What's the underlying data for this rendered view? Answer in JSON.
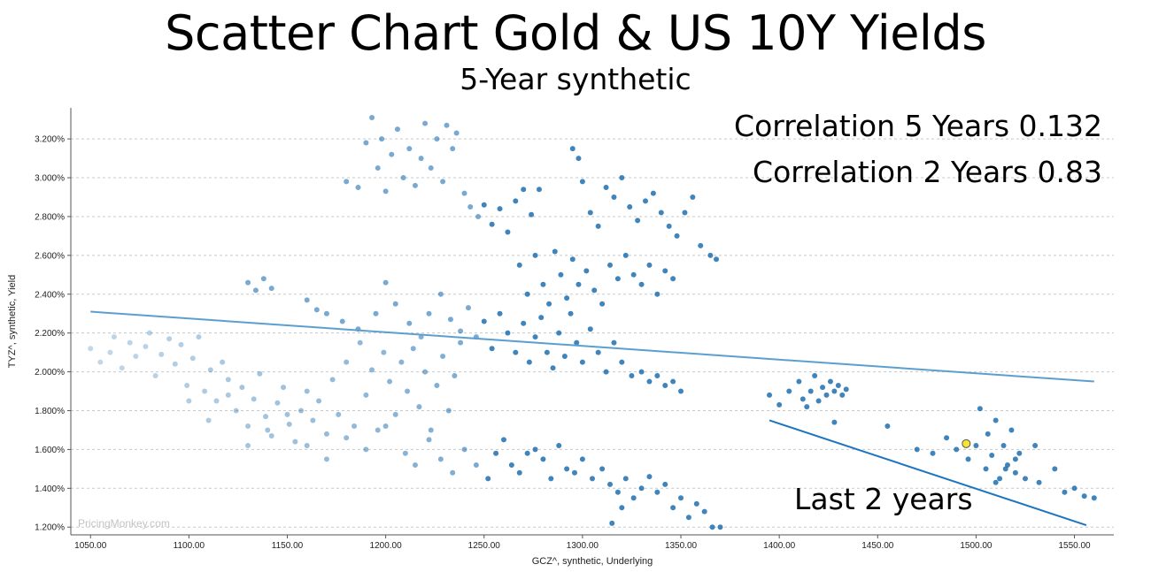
{
  "title": "Scatter Chart Gold & US 10Y Yields",
  "subtitle": "5-Year synthetic",
  "annotations": {
    "correlation_5y": "Correlation 5 Years 0.132",
    "correlation_2y": "Correlation 2 Years 0.83",
    "last_2_years": "Last 2 years",
    "watermark": "PricingMonkey.com"
  },
  "colors": {
    "point": "#1f6fb0",
    "trend_5y": "#5b9fd0",
    "trend_2y": "#1f74c0",
    "latest_point": "#f4e531",
    "grid": "#c8c8c8"
  },
  "chart_data": {
    "type": "scatter",
    "title": "Scatter Chart Gold & US 10Y Yields",
    "subtitle": "5-Year synthetic",
    "xlabel": "GCZ^, synthetic, Underlying",
    "ylabel": "TYZ^, synthetic, Yield",
    "xlim": [
      1040,
      1570
    ],
    "ylim": [
      1.16,
      3.36
    ],
    "x_ticks": [
      1050,
      1100,
      1150,
      1200,
      1250,
      1300,
      1350,
      1400,
      1450,
      1500,
      1550
    ],
    "x_tick_labels": [
      "1050.00",
      "1100.00",
      "1150.00",
      "1200.00",
      "1250.00",
      "1300.00",
      "1350.00",
      "1400.00",
      "1450.00",
      "1500.00",
      "1550.00"
    ],
    "y_ticks": [
      1.2,
      1.4,
      1.6,
      1.8,
      2.0,
      2.2,
      2.4,
      2.6,
      2.8,
      3.0,
      3.2
    ],
    "y_tick_labels": [
      "1.200%",
      "1.400%",
      "1.600%",
      "1.800%",
      "2.000%",
      "2.200%",
      "2.400%",
      "2.600%",
      "2.800%",
      "3.000%",
      "3.200%"
    ],
    "grid": "horizontal dashed",
    "series": [
      {
        "points": [
          [
            1050,
            2.12
          ],
          [
            1055,
            2.05
          ],
          [
            1060,
            2.1
          ],
          [
            1062,
            2.18
          ],
          [
            1066,
            2.02
          ],
          [
            1070,
            2.15
          ],
          [
            1073,
            2.08
          ],
          [
            1078,
            2.13
          ],
          [
            1080,
            2.2
          ],
          [
            1083,
            1.98
          ],
          [
            1086,
            2.09
          ],
          [
            1090,
            2.17
          ],
          [
            1093,
            2.04
          ],
          [
            1096,
            2.14
          ],
          [
            1099,
            1.93
          ],
          [
            1102,
            2.07
          ],
          [
            1105,
            2.18
          ],
          [
            1108,
            1.9
          ],
          [
            1111,
            2.01
          ],
          [
            1114,
            1.85
          ],
          [
            1117,
            2.05
          ],
          [
            1120,
            1.96
          ],
          [
            1124,
            1.8
          ],
          [
            1127,
            1.92
          ],
          [
            1130,
            1.72
          ],
          [
            1133,
            1.86
          ],
          [
            1136,
            1.99
          ],
          [
            1139,
            1.77
          ],
          [
            1142,
            1.67
          ],
          [
            1145,
            1.84
          ],
          [
            1148,
            1.92
          ],
          [
            1151,
            1.73
          ],
          [
            1154,
            1.64
          ],
          [
            1157,
            1.8
          ],
          [
            1160,
            1.9
          ],
          [
            1163,
            1.75
          ],
          [
            1166,
            1.85
          ],
          [
            1170,
            1.68
          ],
          [
            1173,
            1.96
          ],
          [
            1176,
            1.78
          ],
          [
            1180,
            2.05
          ],
          [
            1184,
            1.72
          ],
          [
            1187,
            2.15
          ],
          [
            1190,
            1.88
          ],
          [
            1193,
            2.01
          ],
          [
            1196,
            1.7
          ],
          [
            1199,
            2.1
          ],
          [
            1202,
            1.95
          ],
          [
            1205,
            1.78
          ],
          [
            1208,
            2.05
          ],
          [
            1211,
            1.9
          ],
          [
            1214,
            2.12
          ],
          [
            1217,
            1.82
          ],
          [
            1220,
            2.0
          ],
          [
            1223,
            1.7
          ],
          [
            1226,
            1.93
          ],
          [
            1229,
            2.08
          ],
          [
            1232,
            1.8
          ],
          [
            1235,
            1.98
          ],
          [
            1238,
            2.15
          ],
          [
            1130,
            2.46
          ],
          [
            1134,
            2.42
          ],
          [
            1138,
            2.48
          ],
          [
            1142,
            2.43
          ],
          [
            1160,
            2.37
          ],
          [
            1165,
            2.32
          ],
          [
            1170,
            2.3
          ],
          [
            1178,
            2.26
          ],
          [
            1186,
            2.22
          ],
          [
            1195,
            2.3
          ],
          [
            1200,
            2.46
          ],
          [
            1205,
            2.35
          ],
          [
            1212,
            2.25
          ],
          [
            1218,
            2.18
          ],
          [
            1222,
            2.3
          ],
          [
            1228,
            2.4
          ],
          [
            1233,
            2.27
          ],
          [
            1238,
            2.21
          ],
          [
            1242,
            2.33
          ],
          [
            1246,
            2.18
          ],
          [
            1250,
            2.26
          ],
          [
            1254,
            2.12
          ],
          [
            1258,
            2.3
          ],
          [
            1262,
            2.2
          ],
          [
            1266,
            2.1
          ],
          [
            1270,
            2.25
          ],
          [
            1273,
            2.05
          ],
          [
            1276,
            2.18
          ],
          [
            1279,
            2.28
          ],
          [
            1282,
            2.1
          ],
          [
            1285,
            2.02
          ],
          [
            1288,
            2.2
          ],
          [
            1291,
            2.08
          ],
          [
            1294,
            2.3
          ],
          [
            1297,
            2.15
          ],
          [
            1300,
            2.05
          ],
          [
            1304,
            2.22
          ],
          [
            1308,
            2.1
          ],
          [
            1312,
            2.0
          ],
          [
            1316,
            2.15
          ],
          [
            1320,
            2.05
          ],
          [
            1325,
            1.98
          ],
          [
            1330,
            2.0
          ],
          [
            1334,
            1.95
          ],
          [
            1338,
            1.98
          ],
          [
            1342,
            1.93
          ],
          [
            1346,
            1.95
          ],
          [
            1350,
            1.9
          ],
          [
            1180,
            2.98
          ],
          [
            1186,
            2.95
          ],
          [
            1190,
            3.18
          ],
          [
            1193,
            3.31
          ],
          [
            1196,
            3.05
          ],
          [
            1198,
            3.2
          ],
          [
            1200,
            2.93
          ],
          [
            1203,
            3.12
          ],
          [
            1206,
            3.25
          ],
          [
            1209,
            3.0
          ],
          [
            1212,
            3.15
          ],
          [
            1215,
            2.96
          ],
          [
            1218,
            3.1
          ],
          [
            1220,
            3.28
          ],
          [
            1223,
            3.05
          ],
          [
            1226,
            3.2
          ],
          [
            1229,
            2.98
          ],
          [
            1231,
            3.27
          ],
          [
            1234,
            3.15
          ],
          [
            1236,
            3.23
          ],
          [
            1240,
            2.92
          ],
          [
            1243,
            2.85
          ],
          [
            1247,
            2.8
          ],
          [
            1250,
            2.86
          ],
          [
            1254,
            2.76
          ],
          [
            1258,
            2.84
          ],
          [
            1262,
            2.72
          ],
          [
            1266,
            2.88
          ],
          [
            1270,
            2.94
          ],
          [
            1274,
            2.81
          ],
          [
            1278,
            2.94
          ],
          [
            1295,
            3.15
          ],
          [
            1298,
            3.1
          ],
          [
            1300,
            2.98
          ],
          [
            1304,
            2.82
          ],
          [
            1308,
            2.75
          ],
          [
            1312,
            2.95
          ],
          [
            1316,
            2.9
          ],
          [
            1320,
            3.0
          ],
          [
            1324,
            2.85
          ],
          [
            1328,
            2.78
          ],
          [
            1332,
            2.88
          ],
          [
            1336,
            2.92
          ],
          [
            1340,
            2.82
          ],
          [
            1344,
            2.75
          ],
          [
            1348,
            2.7
          ],
          [
            1352,
            2.82
          ],
          [
            1356,
            2.9
          ],
          [
            1360,
            2.65
          ],
          [
            1365,
            2.6
          ],
          [
            1368,
            2.58
          ],
          [
            1268,
            2.55
          ],
          [
            1272,
            2.4
          ],
          [
            1276,
            2.6
          ],
          [
            1280,
            2.45
          ],
          [
            1283,
            2.35
          ],
          [
            1286,
            2.62
          ],
          [
            1289,
            2.5
          ],
          [
            1292,
            2.38
          ],
          [
            1295,
            2.58
          ],
          [
            1298,
            2.45
          ],
          [
            1302,
            2.52
          ],
          [
            1306,
            2.42
          ],
          [
            1310,
            2.35
          ],
          [
            1314,
            2.55
          ],
          [
            1318,
            2.48
          ],
          [
            1322,
            2.6
          ],
          [
            1326,
            2.5
          ],
          [
            1330,
            2.45
          ],
          [
            1334,
            2.55
          ],
          [
            1338,
            2.4
          ],
          [
            1342,
            2.52
          ],
          [
            1346,
            2.48
          ],
          [
            1100,
            1.85
          ],
          [
            1110,
            1.75
          ],
          [
            1120,
            1.88
          ],
          [
            1130,
            1.62
          ],
          [
            1140,
            1.7
          ],
          [
            1150,
            1.78
          ],
          [
            1160,
            1.62
          ],
          [
            1170,
            1.55
          ],
          [
            1180,
            1.66
          ],
          [
            1190,
            1.6
          ],
          [
            1200,
            1.72
          ],
          [
            1210,
            1.58
          ],
          [
            1215,
            1.52
          ],
          [
            1222,
            1.65
          ],
          [
            1228,
            1.55
          ],
          [
            1234,
            1.48
          ],
          [
            1240,
            1.6
          ],
          [
            1246,
            1.52
          ],
          [
            1252,
            1.45
          ],
          [
            1256,
            1.58
          ],
          [
            1260,
            1.65
          ],
          [
            1264,
            1.52
          ],
          [
            1268,
            1.48
          ],
          [
            1272,
            1.58
          ],
          [
            1276,
            1.6
          ],
          [
            1280,
            1.55
          ],
          [
            1284,
            1.45
          ],
          [
            1288,
            1.62
          ],
          [
            1292,
            1.5
          ],
          [
            1296,
            1.48
          ],
          [
            1300,
            1.55
          ],
          [
            1305,
            1.45
          ],
          [
            1310,
            1.5
          ],
          [
            1314,
            1.42
          ],
          [
            1318,
            1.38
          ],
          [
            1322,
            1.45
          ],
          [
            1326,
            1.35
          ],
          [
            1330,
            1.4
          ],
          [
            1334,
            1.46
          ],
          [
            1338,
            1.38
          ],
          [
            1342,
            1.42
          ],
          [
            1346,
            1.3
          ],
          [
            1350,
            1.35
          ],
          [
            1354,
            1.25
          ],
          [
            1358,
            1.32
          ],
          [
            1362,
            1.28
          ],
          [
            1366,
            1.2
          ],
          [
            1370,
            1.2
          ],
          [
            1315,
            1.22
          ],
          [
            1320,
            1.3
          ],
          [
            1395,
            1.88
          ],
          [
            1400,
            1.83
          ],
          [
            1405,
            1.9
          ],
          [
            1410,
            1.95
          ],
          [
            1412,
            1.86
          ],
          [
            1414,
            1.82
          ],
          [
            1416,
            1.9
          ],
          [
            1418,
            1.98
          ],
          [
            1420,
            1.85
          ],
          [
            1422,
            1.92
          ],
          [
            1424,
            1.88
          ],
          [
            1426,
            1.95
          ],
          [
            1428,
            1.9
          ],
          [
            1430,
            1.93
          ],
          [
            1432,
            1.88
          ],
          [
            1434,
            1.91
          ],
          [
            1428,
            1.74
          ],
          [
            1455,
            1.72
          ],
          [
            1470,
            1.6
          ],
          [
            1478,
            1.58
          ],
          [
            1485,
            1.66
          ],
          [
            1490,
            1.6
          ],
          [
            1496,
            1.55
          ],
          [
            1500,
            1.62
          ],
          [
            1502,
            1.81
          ],
          [
            1505,
            1.5
          ],
          [
            1506,
            1.68
          ],
          [
            1508,
            1.57
          ],
          [
            1510,
            1.75
          ],
          [
            1512,
            1.45
          ],
          [
            1514,
            1.62
          ],
          [
            1516,
            1.52
          ],
          [
            1518,
            1.7
          ],
          [
            1520,
            1.48
          ],
          [
            1522,
            1.58
          ],
          [
            1525,
            1.45
          ],
          [
            1530,
            1.62
          ],
          [
            1532,
            1.43
          ],
          [
            1540,
            1.5
          ],
          [
            1545,
            1.38
          ],
          [
            1550,
            1.4
          ],
          [
            1555,
            1.36
          ],
          [
            1560,
            1.35
          ],
          [
            1510,
            1.43
          ],
          [
            1515,
            1.5
          ],
          [
            1520,
            1.55
          ]
        ]
      }
    ],
    "latest_point": [
      1495,
      1.63
    ],
    "trend_lines": [
      {
        "x": [
          1050,
          1560
        ],
        "y": [
          2.31,
          1.95
        ]
      },
      {
        "x": [
          1395,
          1556
        ],
        "y": [
          1.75,
          1.21
        ]
      }
    ]
  }
}
